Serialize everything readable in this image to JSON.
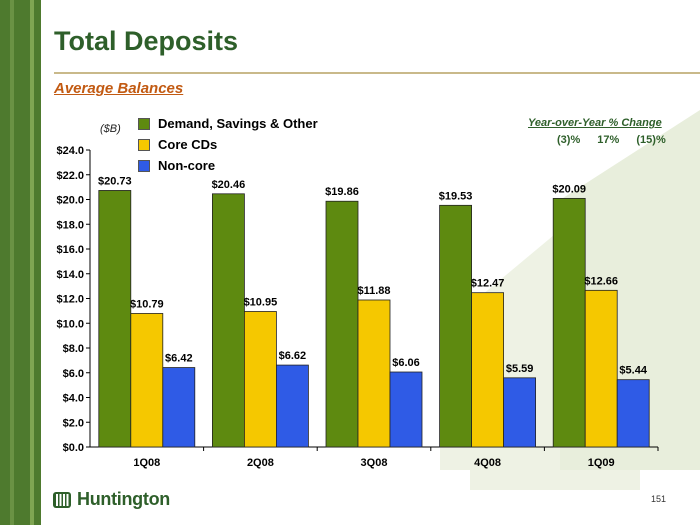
{
  "title": "Total Deposits",
  "subtitle": "Average Balances",
  "unit_label": "($B)",
  "yoy": {
    "title": "Year-over-Year % Change",
    "values": [
      "(3)%",
      "17%",
      "(15)%"
    ]
  },
  "logo": {
    "text": "Huntington",
    "icon": "huntington-logo-icon"
  },
  "page_number": "151",
  "colors": {
    "demand": "#5e8a10",
    "core": "#f5c800",
    "noncore": "#2f5be6",
    "title": "#2e5f2a",
    "subtitle": "#c25a12"
  },
  "chart_data": {
    "type": "bar",
    "categories": [
      "1Q08",
      "2Q08",
      "3Q08",
      "4Q08",
      "1Q09"
    ],
    "series": [
      {
        "name": "Demand, Savings & Other",
        "values": [
          20.73,
          20.46,
          19.86,
          19.53,
          20.09
        ],
        "labels": [
          "$20.73",
          "$20.46",
          "$19.86",
          "$19.53",
          "$20.09"
        ]
      },
      {
        "name": "Core CDs",
        "values": [
          10.79,
          10.95,
          11.88,
          12.47,
          12.66
        ],
        "labels": [
          "$10.79",
          "$10.95",
          "$11.88",
          "$12.47",
          "$12.66"
        ]
      },
      {
        "name": "Non-core",
        "values": [
          6.42,
          6.62,
          6.06,
          5.59,
          5.44
        ],
        "labels": [
          "$6.42",
          "$6.62",
          "$6.06",
          "$5.59",
          "$5.44"
        ]
      }
    ],
    "yticks": [
      "$0.0",
      "$2.0",
      "$4.0",
      "$6.0",
      "$8.0",
      "$10.0",
      "$12.0",
      "$14.0",
      "$16.0",
      "$18.0",
      "$20.0",
      "$22.0",
      "$24.0"
    ],
    "ylim": [
      0,
      24
    ],
    "legend_position": "top-left",
    "grid": false
  }
}
